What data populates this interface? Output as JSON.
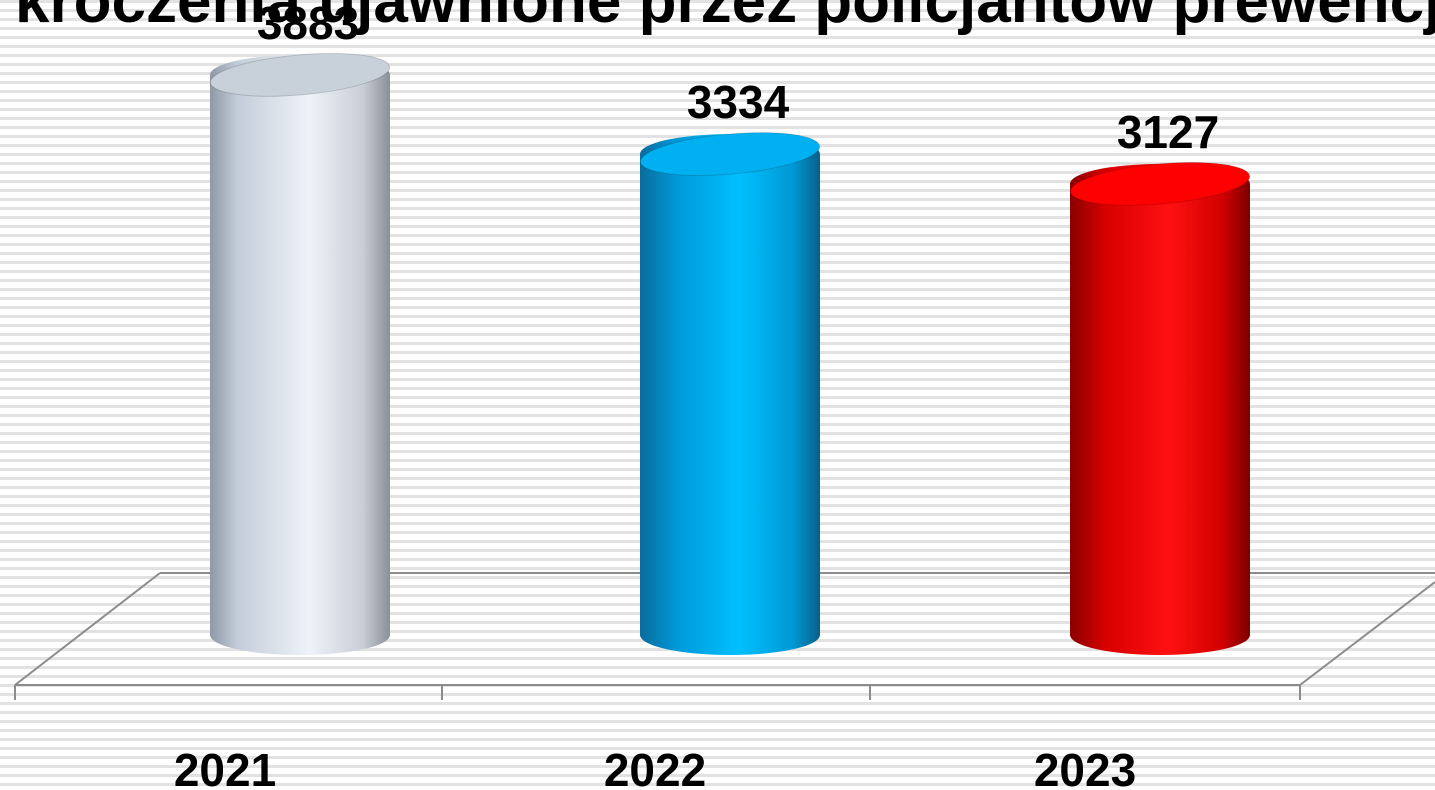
{
  "chart_data": {
    "type": "bar",
    "title": "kroczenia ujawnione przez policjantów prewencji",
    "categories": [
      "2021",
      "2022",
      "2023"
    ],
    "values": [
      3883,
      3334,
      3127
    ],
    "colors": [
      "#c8d0da",
      "#00b0f0",
      "#ff0000"
    ],
    "ylim": [
      0,
      4000
    ]
  }
}
